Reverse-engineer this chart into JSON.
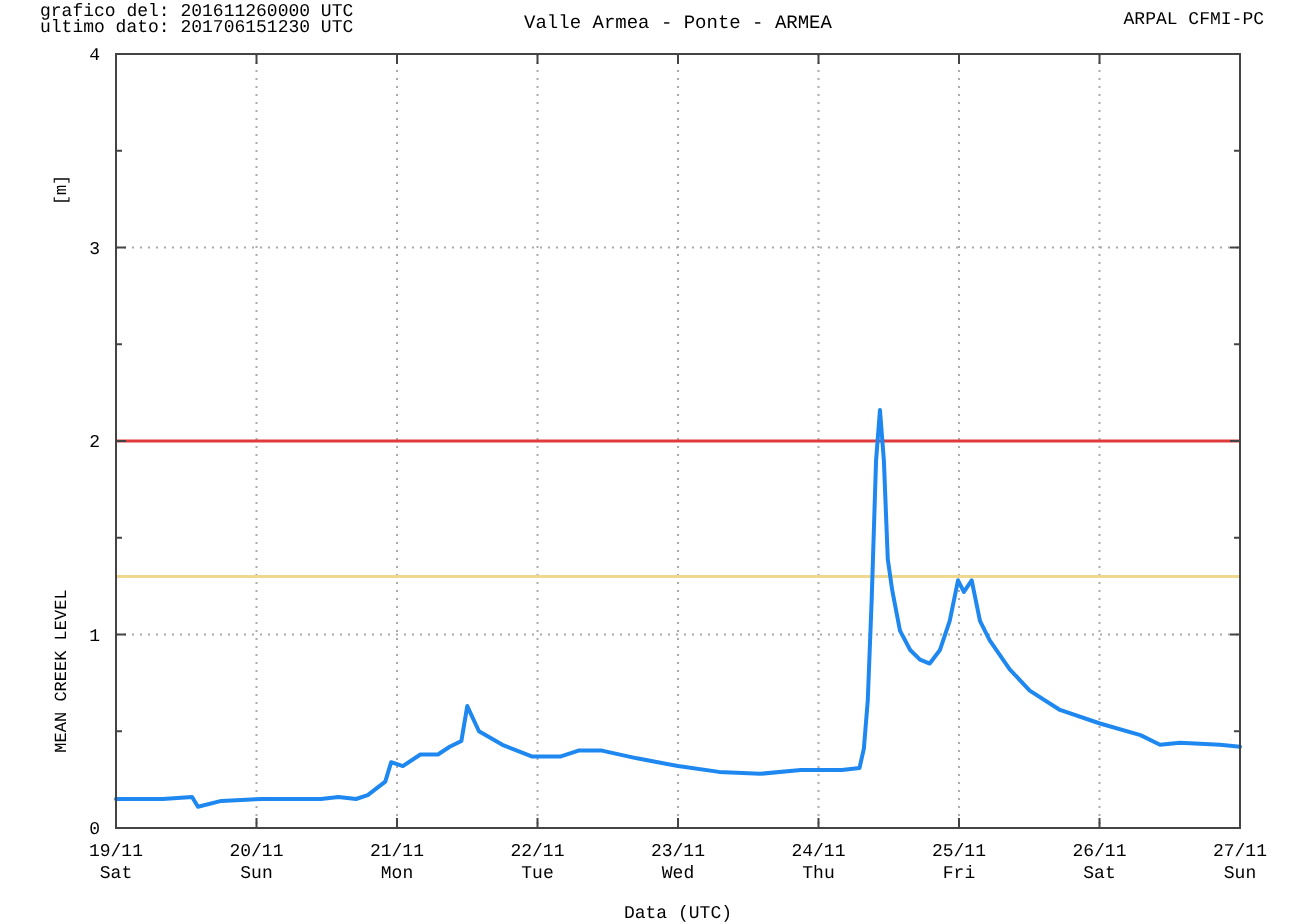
{
  "chart_data": {
    "type": "line",
    "title": "Valle Armea - Ponte - ARMEA",
    "xlabel": "Data (UTC)",
    "ylabel": "MEAN CREEK LEVEL",
    "annotations": [
      "grafico del: 201611260000 UTC",
      "ultimo dato: 201706151230 UTC",
      "ARPAL CFMI-PC",
      "[m]"
    ],
    "x": [
      "2016-11-19T00:00",
      "2016-11-19T08:00",
      "2016-11-19T13:00",
      "2016-11-19T14:00",
      "2016-11-19T18:00",
      "2016-11-20T01:00",
      "2016-11-20T11:00",
      "2016-11-20T14:00",
      "2016-11-20T17:00",
      "2016-11-20T19:00",
      "2016-11-20T22:00",
      "2016-11-20T23:00",
      "2016-11-21T01:00",
      "2016-11-21T04:00",
      "2016-11-21T07:00",
      "2016-11-21T09:00",
      "2016-11-21T11:00",
      "2016-11-21T12:00",
      "2016-11-21T14:00",
      "2016-11-21T18:00",
      "2016-11-21T23:00",
      "2016-11-22T04:00",
      "2016-11-22T07:00",
      "2016-11-22T11:00",
      "2016-11-22T17:00",
      "2016-11-23T00:00",
      "2016-11-23T07:00",
      "2016-11-23T14:00",
      "2016-11-23T21:00",
      "2016-11-24T04:00",
      "2016-11-24T07:00",
      "2016-11-24T07:45",
      "2016-11-24T08:25",
      "2016-11-24T09:05",
      "2016-11-24T09:50",
      "2016-11-24T10:30",
      "2016-11-24T11:10",
      "2016-11-24T11:50",
      "2016-11-24T12:35",
      "2016-11-24T13:55",
      "2016-11-24T15:40",
      "2016-11-24T17:20",
      "2016-11-24T19:00",
      "2016-11-24T20:45",
      "2016-11-24T22:25",
      "2016-11-24T23:50",
      "2016-11-25T00:50",
      "2016-11-25T02:10",
      "2016-11-25T03:35",
      "2016-11-25T05:15",
      "2016-11-25T08:40",
      "2016-11-25T12:05",
      "2016-11-25T17:15",
      "2016-11-26T00:05",
      "2016-11-26T07:00",
      "2016-11-26T10:20",
      "2016-11-26T13:45",
      "2016-11-26T20:35",
      "2016-11-27T00:00"
    ],
    "series": [
      {
        "color": "#1e88f0",
        "values": [
          0.15,
          0.15,
          0.16,
          0.11,
          0.14,
          0.15,
          0.15,
          0.16,
          0.15,
          0.17,
          0.24,
          0.34,
          0.32,
          0.38,
          0.38,
          0.42,
          0.45,
          0.63,
          0.5,
          0.43,
          0.37,
          0.37,
          0.4,
          0.4,
          0.36,
          0.32,
          0.29,
          0.28,
          0.3,
          0.3,
          0.31,
          0.41,
          0.66,
          1.18,
          1.9,
          2.16,
          1.9,
          1.39,
          1.23,
          1.02,
          0.92,
          0.87,
          0.85,
          0.92,
          1.07,
          1.28,
          1.22,
          1.28,
          1.07,
          0.97,
          0.82,
          0.71,
          0.61,
          0.54,
          0.48,
          0.43,
          0.44,
          0.43,
          0.42
        ]
      }
    ],
    "xlim": [
      "2016-11-19T00:00",
      "2016-11-27T00:00"
    ],
    "xticks": [
      {
        "value": "2016-11-19T00:00",
        "label": "19/11\nSat"
      },
      {
        "value": "2016-11-20T00:00",
        "label": "20/11\nSun"
      },
      {
        "value": "2016-11-21T00:00",
        "label": "21/11\nMon"
      },
      {
        "value": "2016-11-22T00:00",
        "label": "22/11\nTue"
      },
      {
        "value": "2016-11-23T00:00",
        "label": "23/11\nWed"
      },
      {
        "value": "2016-11-24T00:00",
        "label": "24/11\nThu"
      },
      {
        "value": "2016-11-25T00:00",
        "label": "25/11\nFri"
      },
      {
        "value": "2016-11-26T00:00",
        "label": "26/11\nSat"
      },
      {
        "value": "2016-11-27T00:00",
        "label": "27/11\nSun"
      }
    ],
    "ylim": [
      0,
      4
    ],
    "yticks": [
      0,
      {
        "value": 0.5,
        "label": null
      },
      1,
      {
        "value": 1.5,
        "label": null
      },
      2,
      {
        "value": 2.5,
        "label": null
      },
      3,
      {
        "value": 3.5,
        "label": null
      },
      4
    ],
    "grid": true,
    "ref_lines": [
      {
        "axis": "y",
        "value": 2,
        "color": "#e03a3a"
      },
      {
        "axis": "y",
        "value": 1.3,
        "color": "#f0d890"
      }
    ]
  }
}
